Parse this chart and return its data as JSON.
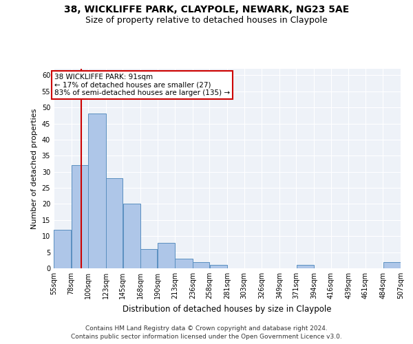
{
  "title1": "38, WICKLIFFE PARK, CLAYPOLE, NEWARK, NG23 5AE",
  "title2": "Size of property relative to detached houses in Claypole",
  "xlabel": "Distribution of detached houses by size in Claypole",
  "ylabel": "Number of detached properties",
  "footer1": "Contains HM Land Registry data © Crown copyright and database right 2024.",
  "footer2": "Contains public sector information licensed under the Open Government Licence v3.0.",
  "annotation_title": "38 WICKLIFFE PARK: 91sqm",
  "annotation_line1": "← 17% of detached houses are smaller (27)",
  "annotation_line2": "83% of semi-detached houses are larger (135) →",
  "property_size": 91,
  "bar_edges": [
    55,
    78,
    100,
    123,
    145,
    168,
    190,
    213,
    236,
    258,
    281,
    303,
    326,
    349,
    371,
    394,
    416,
    439,
    461,
    484,
    507
  ],
  "bar_values": [
    12,
    32,
    48,
    28,
    20,
    6,
    8,
    3,
    2,
    1,
    0,
    0,
    0,
    0,
    1,
    0,
    0,
    0,
    0,
    2
  ],
  "bar_color": "#aec6e8",
  "bar_edge_color": "#5a8fc0",
  "vline_color": "#cc0000",
  "background_color": "#eef2f8",
  "ylim": [
    0,
    62
  ],
  "yticks": [
    0,
    5,
    10,
    15,
    20,
    25,
    30,
    35,
    40,
    45,
    50,
    55,
    60
  ],
  "title1_fontsize": 10,
  "title2_fontsize": 9,
  "xlabel_fontsize": 8.5,
  "ylabel_fontsize": 8,
  "tick_fontsize": 7,
  "footer_fontsize": 6.5,
  "annotation_fontsize": 7.5
}
